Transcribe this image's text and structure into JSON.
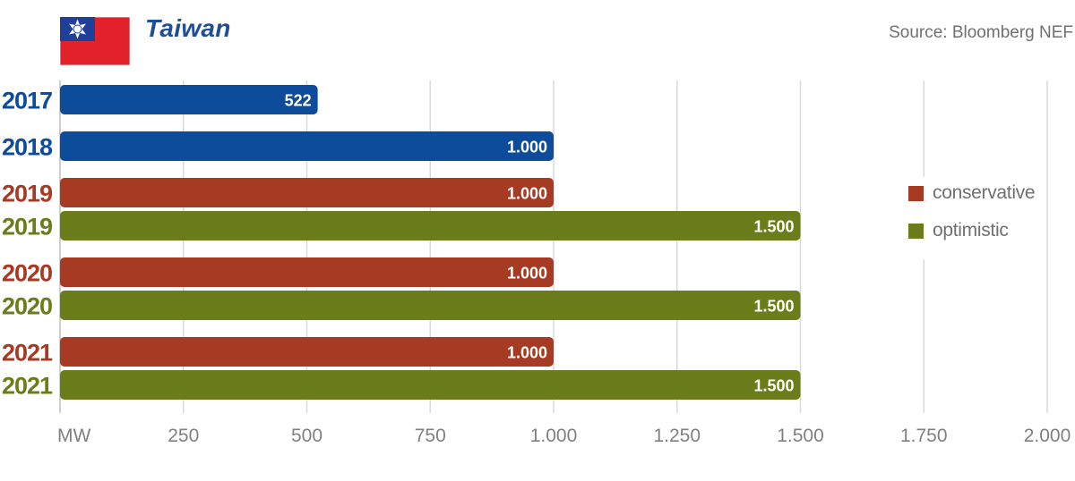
{
  "header": {
    "title": "Taiwan",
    "source": "Source: Bloomberg NEF"
  },
  "colors": {
    "actual": "#0d4c9a",
    "conservative": "#a63a22",
    "optimistic": "#6a7d1a",
    "grid": "#d9d9d9",
    "axis_text": "#808080",
    "flag_red": "#e3212a",
    "flag_blue": "#1f3f9a"
  },
  "legend": {
    "items": [
      {
        "label": "conservative",
        "color": "#a63a22"
      },
      {
        "label": "optimistic",
        "color": "#6a7d1a"
      }
    ]
  },
  "chart_data": {
    "type": "bar",
    "orientation": "horizontal",
    "title": "Taiwan",
    "xlabel": "MW",
    "xlim": [
      0,
      2000
    ],
    "xticks": [
      0,
      250,
      500,
      750,
      1000,
      1250,
      1500,
      1750,
      2000
    ],
    "xtick_labels": [
      "MW",
      "250",
      "500",
      "750",
      "1.000",
      "1.250",
      "1.500",
      "1.750",
      "2.000"
    ],
    "grid": true,
    "legend_position": "right",
    "bars": [
      {
        "year": "2017",
        "series": "actual",
        "value": 522,
        "label": "522"
      },
      {
        "year": "2018",
        "series": "actual",
        "value": 1000,
        "label": "1.000"
      },
      {
        "year": "2019",
        "series": "conservative",
        "value": 1000,
        "label": "1.000"
      },
      {
        "year": "2019",
        "series": "optimistic",
        "value": 1500,
        "label": "1.500"
      },
      {
        "year": "2020",
        "series": "conservative",
        "value": 1000,
        "label": "1.000"
      },
      {
        "year": "2020",
        "series": "optimistic",
        "value": 1500,
        "label": "1.500"
      },
      {
        "year": "2021",
        "series": "conservative",
        "value": 1000,
        "label": "1.000"
      },
      {
        "year": "2021",
        "series": "optimistic",
        "value": 1500,
        "label": "1.500"
      }
    ]
  }
}
